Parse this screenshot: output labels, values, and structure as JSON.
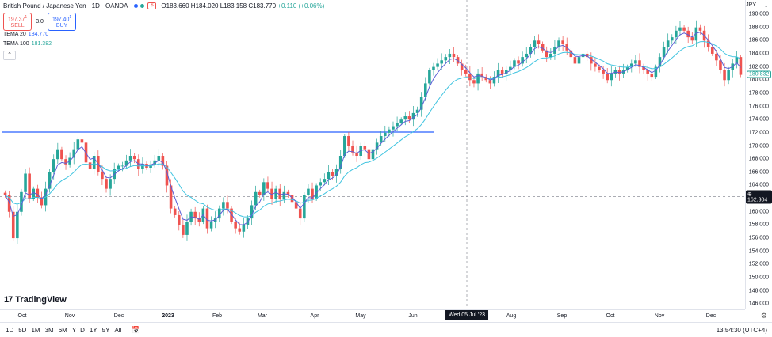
{
  "header": {
    "symbol": "British Pound / Japanese Yen · 1D · OANDA",
    "o": "O183.660",
    "h": "H184.020",
    "l": "L183.158",
    "c": "C183.770",
    "chg": "+0.110 (+0.06%)"
  },
  "trade": {
    "sell_price": "197.37",
    "sell_sup": "1",
    "sell_label": "SELL",
    "spread": "3.0",
    "buy_price": "197.40",
    "buy_sup": "1",
    "buy_label": "BUY"
  },
  "indicators": [
    {
      "label": "TEMA 20",
      "value": "184.770"
    },
    {
      "label": "TEMA 100",
      "value": "181.382"
    }
  ],
  "price_axis": {
    "currency": "JPY",
    "labels": [
      "190.000",
      "188.000",
      "186.000",
      "184.000",
      "182.000",
      "180.000",
      "178.000",
      "176.000",
      "174.000",
      "172.000",
      "170.000",
      "168.000",
      "166.000",
      "164.000",
      "162.000",
      "160.000",
      "158.000",
      "156.000",
      "154.000",
      "152.000",
      "150.000",
      "148.000",
      "146.000"
    ],
    "crosshair_price": "162.304",
    "tema_price": "180.832"
  },
  "time_axis": {
    "labels": [
      "Oct",
      "Nov",
      "Dec",
      "2023",
      "Feb",
      "Mar",
      "Apr",
      "May",
      "Jun",
      "Aug",
      "Sep",
      "Oct",
      "Nov",
      "Dec"
    ],
    "crosshair_date": "Wed 05 Jul '23"
  },
  "ranges": [
    "1D",
    "5D",
    "1M",
    "3M",
    "6M",
    "YTD",
    "1Y",
    "5Y",
    "All"
  ],
  "clock": "13:54:30 (UTC+4)",
  "logo": "TradingView",
  "colors": {
    "up": "#26a69a",
    "down": "#ef5350",
    "tema20": "#5b5fd6",
    "tema100": "#40c4e0",
    "hline": "#2962ff"
  },
  "chart_data": {
    "type": "candlestick",
    "title": "British Pound / Japanese Yen · 1D · OANDA",
    "ylim": [
      145.2,
      191.2
    ],
    "horizontal_line": 172.1,
    "crosshair": {
      "date": "Wed 05 Jul '23",
      "price": 162.304
    },
    "closes": [
      162.5,
      160.0,
      156.0,
      160.0,
      163.0,
      165.8,
      162.0,
      163.5,
      162.2,
      161.0,
      163.5,
      166.0,
      168.0,
      169.5,
      168.0,
      167.2,
      168.2,
      169.5,
      171.0,
      170.5,
      167.5,
      166.5,
      168.5,
      166.0,
      165.0,
      163.5,
      165.0,
      166.5,
      167.0,
      167.0,
      167.8,
      168.5,
      168.0,
      166.5,
      167.3,
      166.7,
      167.2,
      167.8,
      168.5,
      167.0,
      164.0,
      160.5,
      159.5,
      158.0,
      156.5,
      158.5,
      160.0,
      159.0,
      158.5,
      160.5,
      157.5,
      158.5,
      159.0,
      160.5,
      161.5,
      160.5,
      158.5,
      157.5,
      157.0,
      158.0,
      159.0,
      161.0,
      163.0,
      162.5,
      164.5,
      163.5,
      162.0,
      163.5,
      162.0,
      163.0,
      162.5,
      161.5,
      160.5,
      159.0,
      162.5,
      163.5,
      162.0,
      164.0,
      164.5,
      165.0,
      166.0,
      165.5,
      166.5,
      168.5,
      171.5,
      170.0,
      169.0,
      168.5,
      170.0,
      169.5,
      168.0,
      169.5,
      170.5,
      171.5,
      172.0,
      172.5,
      173.0,
      173.5,
      174.0,
      174.5,
      174.0,
      175.0,
      175.5,
      177.5,
      179.5,
      181.5,
      182.0,
      182.5,
      183.0,
      183.5,
      184.0,
      183.5,
      182.5,
      181.5,
      181.0,
      180.0,
      179.5,
      181.0,
      180.5,
      180.0,
      179.5,
      180.5,
      181.5,
      181.0,
      181.5,
      182.0,
      183.0,
      182.5,
      183.5,
      184.0,
      185.0,
      186.0,
      185.5,
      184.5,
      183.5,
      184.0,
      185.0,
      186.0,
      185.5,
      184.5,
      183.5,
      182.5,
      183.5,
      184.0,
      183.5,
      182.5,
      182.0,
      181.5,
      181.0,
      180.0,
      181.0,
      181.5,
      181.0,
      181.5,
      182.0,
      182.5,
      183.0,
      182.0,
      181.5,
      181.0,
      180.5,
      182.0,
      183.5,
      185.0,
      186.0,
      186.5,
      187.5,
      188.0,
      187.5,
      186.5,
      186.0,
      188.0,
      187.5,
      186.0,
      185.0,
      184.0,
      183.0,
      181.5,
      180.0,
      181.5,
      182.5,
      183.5,
      180.8
    ]
  }
}
